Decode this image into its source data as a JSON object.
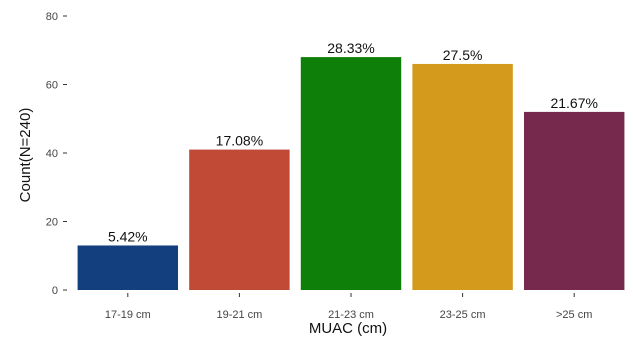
{
  "chart_data": {
    "type": "bar",
    "categories": [
      "17-19 cm",
      "19-21 cm",
      "21-23 cm",
      "23-25 cm",
      ">25 cm"
    ],
    "values": [
      13,
      41,
      68,
      66,
      52
    ],
    "labels": [
      "5.42%",
      "17.08%",
      "28.33%",
      "27.5%",
      "21.67%"
    ],
    "colors": [
      "#143f7e",
      "#c14a37",
      "#0e7f08",
      "#d49a1c",
      "#76284d"
    ],
    "xlabel": "MUAC (cm)",
    "ylabel": "Count(N=240)",
    "ylim": [
      0,
      80
    ],
    "yticks": [
      0,
      20,
      40,
      60,
      80
    ],
    "grid": false,
    "legend": "none"
  }
}
